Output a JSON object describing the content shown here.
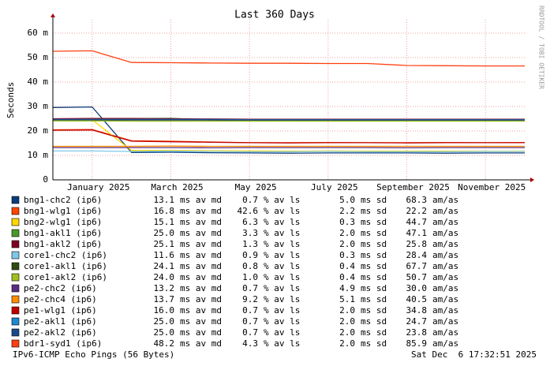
{
  "chart_data": {
    "type": "line",
    "title": "Last 360 Days",
    "y_label": "Seconds",
    "watermark": "RRDTOOL / TOBI OETIKER",
    "xlim": [
      "2024-12",
      "2025-12"
    ],
    "xticks": [
      {
        "value": "2025-01",
        "label": "January 2025"
      },
      {
        "value": "2025-03",
        "label": "March 2025"
      },
      {
        "value": "2025-05",
        "label": "May 2025"
      },
      {
        "value": "2025-07",
        "label": "July 2025"
      },
      {
        "value": "2025-09",
        "label": "September 2025"
      },
      {
        "value": "2025-11",
        "label": "November 2025"
      }
    ],
    "ylim": [
      0,
      0.0655
    ],
    "yticks": [
      0,
      {
        "value": 0.01,
        "label": "10 m"
      },
      {
        "value": 0.02,
        "label": "20 m"
      },
      {
        "value": 0.03,
        "label": "30 m"
      },
      {
        "value": 0.04,
        "label": "40 m"
      },
      {
        "value": 0.05,
        "label": "50 m"
      },
      {
        "value": 0.06,
        "label": "60 m"
      }
    ],
    "grid": true,
    "x": [
      "2024-12",
      "2025-01",
      "2025-02",
      "2025-03",
      "2025-04",
      "2025-05",
      "2025-06",
      "2025-07",
      "2025-08",
      "2025-09",
      "2025-10",
      "2025-11",
      "2025-12"
    ],
    "legend_units": [
      "ms av md",
      "% av ls",
      "ms sd",
      "am/as"
    ],
    "series": [
      {
        "name": "bng1-chc2 (ip6)",
        "color": "#0a3d7a",
        "stats": [
          "13.1",
          "0.7",
          "5.0",
          "68.3"
        ],
        "values": [
          0.0296,
          0.0298,
          0.0112,
          0.0113,
          0.0111,
          0.011,
          0.0109,
          0.011,
          0.011,
          0.011,
          0.0109,
          0.011,
          0.011
        ]
      },
      {
        "name": "bng1-wlg1 (ip6)",
        "color": "#ff4500",
        "stats": [
          "16.8",
          "42.6",
          "2.2",
          "22.2"
        ],
        "values": [
          0.0205,
          0.0206,
          0.016,
          0.0158,
          0.0155,
          0.0152,
          0.0152,
          0.0153,
          0.0152,
          0.0152,
          0.0153,
          0.0152,
          0.0153
        ]
      },
      {
        "name": "bng2-wlg1 (ip6)",
        "color": "#ffd700",
        "stats": [
          "15.1",
          "6.3",
          "0.3",
          "44.7"
        ],
        "values": [
          0.0245,
          0.0246,
          0.012,
          0.012,
          0.0119,
          0.0118,
          0.0117,
          0.0118,
          0.0117,
          0.0117,
          0.0117,
          0.0117,
          0.0117
        ]
      },
      {
        "name": "bng1-akl1 (ip6)",
        "color": "#4a9a2a",
        "stats": [
          "25.0",
          "3.3",
          "2.0",
          "47.1"
        ],
        "values": [
          0.0248,
          0.0249,
          0.025,
          0.0252,
          0.0245,
          0.0242,
          0.0241,
          0.0242,
          0.0241,
          0.0241,
          0.0241,
          0.0241,
          0.0241
        ]
      },
      {
        "name": "bng1-akl2 (ip6)",
        "color": "#800020",
        "stats": [
          "25.1",
          "1.3",
          "2.0",
          "25.8"
        ],
        "values": [
          0.025,
          0.0251,
          0.0251,
          0.025,
          0.0249,
          0.0248,
          0.0248,
          0.0248,
          0.0248,
          0.0248,
          0.0248,
          0.0248,
          0.0248
        ]
      },
      {
        "name": "core1-chc2 (ip6)",
        "color": "#7ec8e8",
        "stats": [
          "11.6",
          "0.9",
          "0.3",
          "28.4"
        ],
        "values": [
          0.0118,
          0.0118,
          0.0116,
          0.0117,
          0.0116,
          0.0115,
          0.0115,
          0.0116,
          0.0115,
          0.0115,
          0.0115,
          0.0116,
          0.0116
        ]
      },
      {
        "name": "core1-akl1 (ip6)",
        "color": "#2e4a10",
        "stats": [
          "24.1",
          "0.8",
          "0.4",
          "67.7"
        ],
        "values": [
          0.0242,
          0.0242,
          0.0241,
          0.0241,
          0.0241,
          0.0241,
          0.0241,
          0.0241,
          0.0241,
          0.0241,
          0.0241,
          0.0241,
          0.0241
        ]
      },
      {
        "name": "core1-akl2 (ip6)",
        "color": "#a0c020",
        "stats": [
          "24.0",
          "1.0",
          "0.4",
          "50.7"
        ],
        "values": [
          0.0241,
          0.0241,
          0.024,
          0.024,
          0.024,
          0.024,
          0.024,
          0.024,
          0.024,
          0.024,
          0.024,
          0.024,
          0.024
        ]
      },
      {
        "name": "pe2-chc2 (ip6)",
        "color": "#5a2d82",
        "stats": [
          "13.2",
          "0.7",
          "4.9",
          "30.0"
        ],
        "values": [
          0.0132,
          0.0132,
          0.0132,
          0.0132,
          0.0131,
          0.0132,
          0.0132,
          0.0132,
          0.0132,
          0.0131,
          0.0132,
          0.0132,
          0.0132
        ]
      },
      {
        "name": "pe2-chc4 (ip6)",
        "color": "#ff8c00",
        "stats": [
          "13.7",
          "9.2",
          "5.1",
          "40.5"
        ],
        "values": [
          0.0137,
          0.0137,
          0.0137,
          0.0138,
          0.0137,
          0.0137,
          0.0137,
          0.0137,
          0.0137,
          0.0137,
          0.0137,
          0.0137,
          0.0137
        ]
      },
      {
        "name": "pe1-wlg1 (ip6)",
        "color": "#c00000",
        "stats": [
          "16.0",
          "0.7",
          "2.0",
          "34.8"
        ],
        "values": [
          0.0203,
          0.0204,
          0.0158,
          0.0156,
          0.0154,
          0.0152,
          0.0151,
          0.0152,
          0.0152,
          0.0151,
          0.0152,
          0.0152,
          0.0152
        ]
      },
      {
        "name": "pe2-akl1 (ip6)",
        "color": "#1e88d0",
        "stats": [
          "25.0",
          "0.7",
          "2.0",
          "24.7"
        ],
        "values": [
          0.0247,
          0.0247,
          0.0247,
          0.0247,
          0.0247,
          0.0246,
          0.0246,
          0.0246,
          0.0246,
          0.0246,
          0.0246,
          0.0246,
          0.0246
        ]
      },
      {
        "name": "pe2-akl2 (ip6)",
        "color": "#1a4a8a",
        "stats": [
          "25.0",
          "0.7",
          "2.0",
          "23.8"
        ],
        "values": [
          0.0246,
          0.0246,
          0.0246,
          0.0246,
          0.0246,
          0.0245,
          0.0245,
          0.0245,
          0.0245,
          0.0245,
          0.0245,
          0.0245,
          0.0245
        ]
      },
      {
        "name": "bdr1-syd1 (ip6)",
        "color": "#ff4010",
        "stats": [
          "48.2",
          "4.3",
          "2.0",
          "85.9"
        ],
        "values": [
          0.0526,
          0.0528,
          0.048,
          0.0479,
          0.0478,
          0.0477,
          0.0477,
          0.0476,
          0.0476,
          0.0468,
          0.0467,
          0.0466,
          0.0466
        ]
      }
    ],
    "footer_left": "IPv6-ICMP Echo Pings (56 Bytes)",
    "footer_right": "Sat Dec  6 17:32:51 2025"
  }
}
